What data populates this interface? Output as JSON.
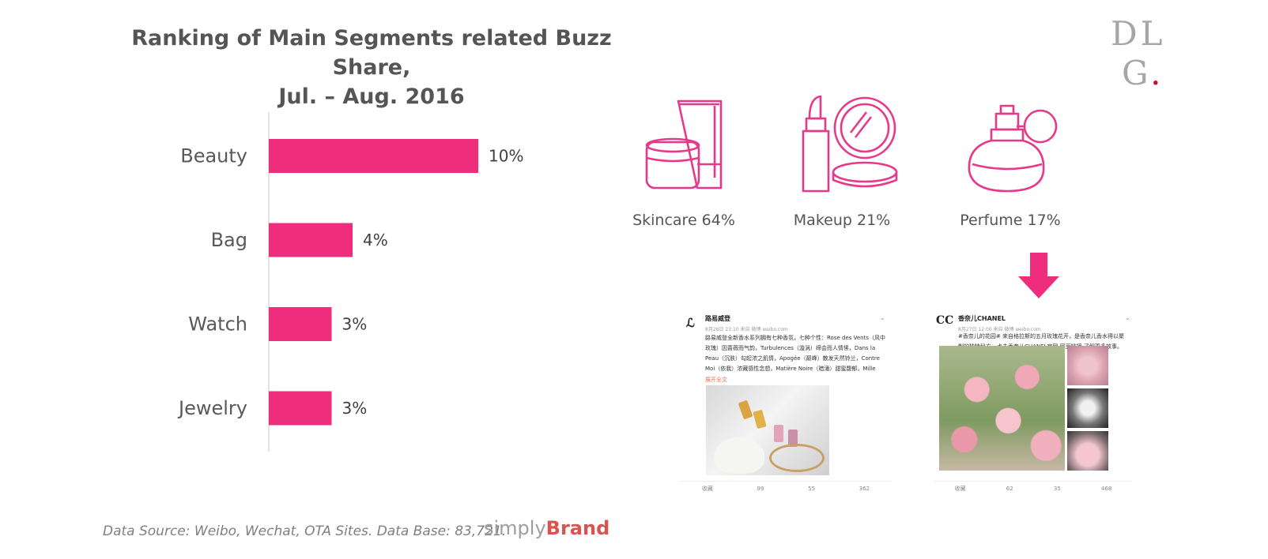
{
  "title_line1": "Ranking of Main Segments related Buzz Share,",
  "title_line2": "Jul. – Aug. 2016",
  "logo": {
    "top": "DL",
    "bottom": "G",
    "dot": "."
  },
  "colors": {
    "bar": "#ee2d7c",
    "icon": "#e8388a",
    "arrow": "#ee2d7c"
  },
  "chart_data": {
    "type": "bar",
    "orientation": "horizontal",
    "categories": [
      "Beauty",
      "Bag",
      "Watch",
      "Jewelry"
    ],
    "values": [
      10,
      4,
      3,
      3
    ],
    "value_labels": [
      "10%",
      "4%",
      "3%",
      "3%"
    ],
    "xlim": [
      0,
      12
    ],
    "grid": false,
    "legend": "none"
  },
  "beauty_breakdown": [
    {
      "label": "Skincare 64%",
      "icon": "skincare-icon"
    },
    {
      "label": "Makeup 21%",
      "icon": "makeup-icon"
    },
    {
      "label": "Perfume 17%",
      "icon": "perfume-icon"
    }
  ],
  "posts": [
    {
      "name": "路易威登",
      "meta": "8月26日 23:10 来自 微博 weibo.com",
      "body": "路易威登全新香水系列拥有七种香氛，七种个性：Rose des Vents（风中玫瑰）因蔷薇而气韵，Turbulences（漩涡）缔会而人情愫，Dans la Peau（沉肤）勾起浓之肌情，Apogée（巅峰）散发天然铃兰，Contre Moi（依我）浓藏感性念想，Matière Noire（暗涌）甜蜜馥郁，Mille Feux（闪耀）挑逗颖现魅丽，诚意...",
      "more": "展开全文",
      "foot": [
        "收藏",
        "99",
        "55",
        "362"
      ]
    },
    {
      "name": "香奈儿CHANEL",
      "meta": "8月27日 12:00 来自 微博 weibo.com",
      "body": "#香奈儿的花园# 来自格拉斯的五月玫瑰花开，是香奈儿香水得以聚制的独特秘方。点击香奈儿CHANEL官网 网页链接 了解更多故事。",
      "foot": [
        "收藏",
        "62",
        "35",
        "468"
      ]
    }
  ],
  "footer_source": "Data Source: Weibo, Wechat, OTA Sites. Data Base: 83,721.",
  "brand": {
    "simply": "simply",
    "brand": "Brand"
  }
}
